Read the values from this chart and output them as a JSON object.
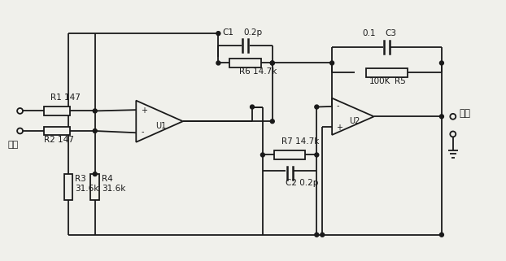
{
  "background": "#f0f0eb",
  "line_color": "#1a1a1a",
  "text_color": "#1a1a1a",
  "fig_width": 6.22,
  "fig_height": 3.21,
  "dpi": 100,
  "labels": {
    "input": "输入",
    "output": "输出",
    "R1": "R1 147",
    "R2": "R2 147",
    "R3": "R3\n31.6k",
    "R4": "R4\n31.6k",
    "R5": "R5",
    "R6": "R6 14.7k",
    "R7": "R7 14.7k",
    "C1": "C1",
    "C1_val": "0.2p",
    "C2": "C2 0.2p",
    "C3": "C3",
    "C3_val": "0.1",
    "U1": "U1",
    "U2": "U2",
    "R5_val": "100K"
  }
}
